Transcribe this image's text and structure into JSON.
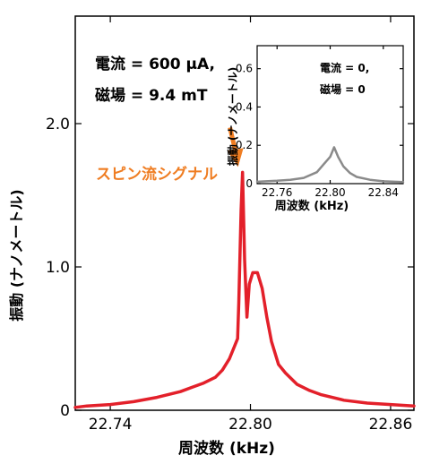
{
  "chart_data": [
    {
      "type": "line",
      "xlabel": "周波数 (kHz)",
      "ylabel": "振動 (ナノメートル)",
      "xlim": [
        22.725,
        22.87
      ],
      "ylim": [
        0,
        2.75
      ],
      "xticks": [
        22.74,
        22.8,
        22.86
      ],
      "xtick_labels": [
        "22.74",
        "22.80",
        "22.86"
      ],
      "yticks": [
        0,
        1.0,
        2.0
      ],
      "ytick_labels": [
        "0",
        "1.0",
        "2.0"
      ],
      "grid": false,
      "annotations": [
        {
          "text": "電流 = 600 μA,"
        },
        {
          "text": "磁場 = 9.4 mT"
        },
        {
          "text": "スピン流シグナル",
          "color": "#ef7d22",
          "points_to": {
            "x": 22.7966,
            "y": 1.66
          }
        }
      ],
      "series": [
        {
          "color": "#e3202a",
          "x": [
            22.725,
            22.73,
            22.74,
            22.75,
            22.76,
            22.77,
            22.775,
            22.78,
            22.785,
            22.788,
            22.791,
            22.793,
            22.7945,
            22.795,
            22.796,
            22.7966,
            22.7975,
            22.7985,
            22.7995,
            22.801,
            22.803,
            22.805,
            22.807,
            22.809,
            22.812,
            22.815,
            22.82,
            22.825,
            22.83,
            22.84,
            22.85,
            22.86,
            22.87
          ],
          "y": [
            0.02,
            0.03,
            0.04,
            0.06,
            0.09,
            0.13,
            0.16,
            0.19,
            0.23,
            0.28,
            0.36,
            0.44,
            0.5,
            0.75,
            1.4,
            1.66,
            1.05,
            0.65,
            0.88,
            0.96,
            0.96,
            0.85,
            0.65,
            0.48,
            0.32,
            0.26,
            0.18,
            0.14,
            0.11,
            0.07,
            0.05,
            0.04,
            0.03
          ]
        }
      ]
    },
    {
      "type": "line",
      "xlabel": "周波数 (kHz)",
      "ylabel": "振動 (ナノメートル)",
      "xlim": [
        22.745,
        22.855
      ],
      "ylim": [
        0,
        0.72
      ],
      "xticks": [
        22.76,
        22.8,
        22.84
      ],
      "xtick_labels": [
        "22.76",
        "22.80",
        "22.84"
      ],
      "yticks": [
        0,
        0.2,
        0.4,
        0.6
      ],
      "ytick_labels": [
        "0",
        "0.2",
        "0.4",
        "0.6"
      ],
      "annotations": [
        {
          "text": "電流 = 0,"
        },
        {
          "text": "磁場 = 0"
        }
      ],
      "series": [
        {
          "color": "#8a8a8a",
          "x": [
            22.745,
            22.76,
            22.77,
            22.78,
            22.79,
            22.795,
            22.8,
            22.803,
            22.806,
            22.81,
            22.815,
            22.82,
            22.83,
            22.84,
            22.855
          ],
          "y": [
            0.01,
            0.015,
            0.02,
            0.03,
            0.06,
            0.1,
            0.14,
            0.19,
            0.14,
            0.09,
            0.055,
            0.035,
            0.02,
            0.012,
            0.008
          ]
        }
      ]
    }
  ]
}
